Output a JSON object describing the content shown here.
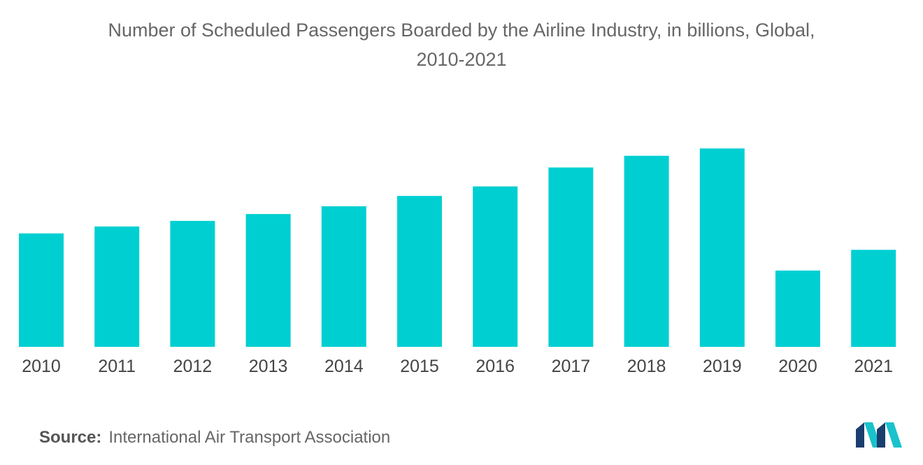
{
  "title_lines": [
    "Number of Scheduled Passengers Boarded by the Airline Industry, in billions, Global,",
    "2010-2021"
  ],
  "source": {
    "label": "Source:",
    "text": "International Air Transport Association"
  },
  "logo": {
    "icon": "mordor-intelligence-logo-icon",
    "colors": [
      "#1a3e6e",
      "#19c2cc"
    ]
  },
  "colors": {
    "bar": "#00cfd2",
    "title": "#666666",
    "tick": "#444444"
  },
  "chart_data": {
    "type": "bar",
    "categories": [
      "2010",
      "2011",
      "2012",
      "2013",
      "2014",
      "2015",
      "2016",
      "2017",
      "2018",
      "2019",
      "2020",
      "2021"
    ],
    "values": [
      2.63,
      2.79,
      2.92,
      3.08,
      3.26,
      3.5,
      3.72,
      4.16,
      4.43,
      4.6,
      1.77,
      2.25
    ],
    "title": "Number of Scheduled Passengers Boarded by the Airline Industry, in billions, Global, 2010-2021",
    "xlabel": "",
    "ylabel": "",
    "ylim": [
      0,
      4.8
    ],
    "grid": false,
    "legend": "none",
    "y_axis_visible": false
  }
}
